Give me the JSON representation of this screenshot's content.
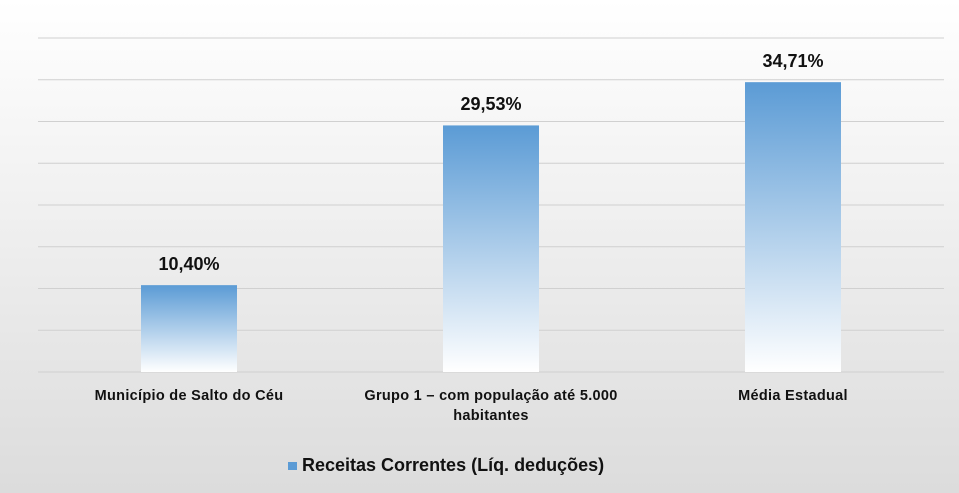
{
  "chart_data": {
    "type": "bar",
    "categories": [
      "Município de Salto do Céu",
      "Grupo 1 – com população até 5.000 habitantes",
      "Média Estadual"
    ],
    "series": [
      {
        "name": "Receitas Correntes (Líq. deduções)",
        "color": "#5b9bd5",
        "values": [
          10.4,
          29.53,
          34.71
        ],
        "value_labels": [
          "10,40%",
          "29,53%",
          "34,71%"
        ]
      }
    ],
    "ylim": [
      0,
      40
    ],
    "yticks": [
      0,
      5,
      10,
      15,
      20,
      25,
      30,
      35,
      40
    ],
    "grid": true,
    "legend": "bottom"
  }
}
